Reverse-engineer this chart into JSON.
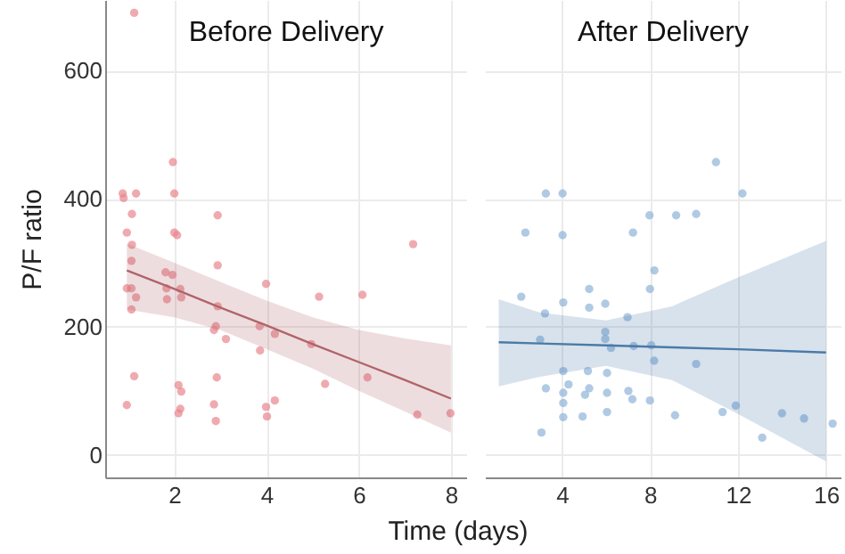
{
  "chart_data": [
    {
      "type": "scatter",
      "title": "Before Delivery",
      "xlabel": "Time (days)",
      "ylabel": "P/F ratio",
      "xlim": [
        0.5,
        8.35
      ],
      "xticks": [
        2,
        4,
        6,
        8
      ],
      "ylim": [
        -35,
        710
      ],
      "yticks": [
        0,
        200,
        400,
        600
      ],
      "grid": true,
      "series": [
        {
          "type": "scatter",
          "marker": "circle",
          "color": "#e8868e",
          "x": [
            1.13,
            1.97,
            0.88,
            0.9,
            1.17,
            2.0,
            1.08,
            2.94,
            0.97,
            2.0,
            2.06,
            7.18,
            1.08,
            1.07,
            0.97,
            1.07,
            1.17,
            1.07,
            1.81,
            1.96,
            1.83,
            1.84,
            2.13,
            2.15,
            2.94,
            2.94,
            2.9,
            2.86,
            3.12,
            3.99,
            3.85,
            4.18,
            3.86,
            5.14,
            6.08,
            4.97,
            1.13,
            2.09,
            2.15,
            2.92,
            5.27,
            6.19,
            0.97,
            2.13,
            2.09,
            2.86,
            2.9,
            3.99,
            4.18,
            4.01,
            7.27,
            7.99
          ],
          "values": [
            690,
            457,
            408,
            401,
            408,
            408,
            376,
            374,
            347,
            347,
            343,
            329,
            328,
            303,
            260,
            260,
            246,
            227,
            285,
            281,
            260,
            243,
            259,
            246,
            296,
            232,
            201,
            195,
            181,
            267,
            201,
            189,
            163,
            247,
            250,
            173,
            123,
            109,
            99,
            121,
            111,
            121,
            78,
            72,
            65,
            79,
            53,
            75,
            85,
            60,
            63,
            65
          ]
        },
        {
          "type": "line",
          "marker": "none",
          "color": "#b0646a",
          "x": [
            0.97,
            2,
            3,
            4,
            5,
            6,
            7,
            8
          ],
          "values": [
            288,
            259,
            230,
            202,
            173,
            145,
            117,
            88
          ],
          "upper": [
            330,
            300,
            270,
            241,
            215,
            195,
            182,
            171
          ],
          "lower": [
            227,
            215,
            195,
            165,
            135,
            100,
            68,
            35
          ]
        }
      ]
    },
    {
      "type": "scatter",
      "title": "After Delivery",
      "xlim": [
        0.5,
        16.7
      ],
      "xticks": [
        4,
        8,
        12,
        16
      ],
      "ylim": [
        -35,
        710
      ],
      "yticks": [
        0,
        200,
        400,
        600
      ],
      "grid": true,
      "tick_labels": "x",
      "series": [
        {
          "type": "scatter",
          "marker": "circle",
          "color": "#8fb3d9",
          "x": [
            11.0,
            3.27,
            4.03,
            12.2,
            7.98,
            9.19,
            10.1,
            2.34,
            4.03,
            7.23,
            8.2,
            8.0,
            2.15,
            4.06,
            5.24,
            5.24,
            5.97,
            3.23,
            6.98,
            3.01,
            5.97,
            5.97,
            6.23,
            7.26,
            8.06,
            8.19,
            10.1,
            4.06,
            5.18,
            6.05,
            3.27,
            4.3,
            5.24,
            5.05,
            4.06,
            6.05,
            7.02,
            7.2,
            8.0,
            4.06,
            4.06,
            4.94,
            6.05,
            9.14,
            11.3,
            11.9,
            14.0,
            15.0,
            16.3,
            13.1,
            3.07
          ],
          "values": [
            457,
            408,
            408,
            408,
            374,
            374,
            376,
            347,
            343,
            347,
            288,
            259,
            247,
            238,
            259,
            230,
            236,
            221,
            215,
            180,
            192,
            181,
            167,
            170,
            171,
            147,
            142,
            131,
            131,
            128,
            104,
            110,
            104,
            94,
            97,
            97,
            100,
            87,
            85,
            81,
            59,
            60,
            67,
            62,
            67,
            77,
            65,
            57,
            49,
            27,
            35
          ]
        },
        {
          "type": "line",
          "marker": "none",
          "color": "#4a7aa8",
          "x": [
            1.13,
            3,
            6,
            9,
            12,
            16
          ],
          "values": [
            176,
            174,
            171,
            168,
            165,
            160
          ],
          "upper": [
            243,
            222,
            210,
            232,
            277,
            334
          ],
          "lower": [
            107,
            122,
            139,
            117,
            64,
            -10
          ]
        }
      ]
    }
  ]
}
